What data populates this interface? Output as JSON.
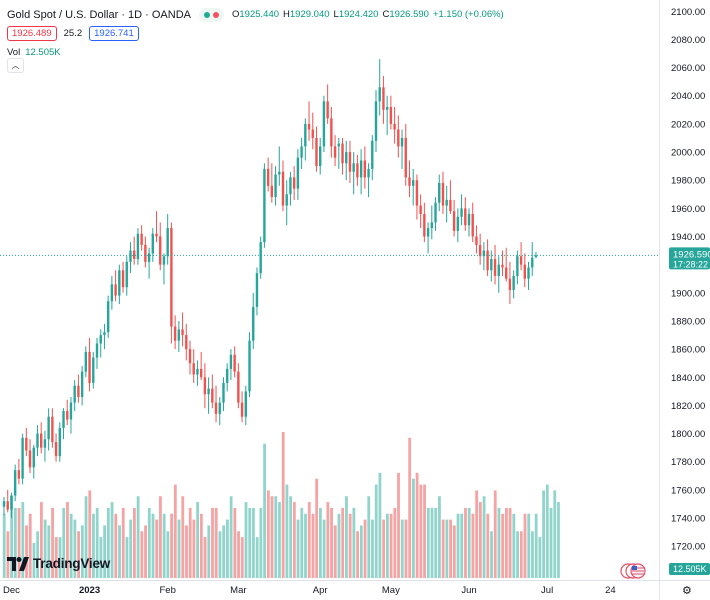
{
  "legend": {
    "symbol": "Gold Spot / U.S. Dollar · 1D · OANDA",
    "open_key": "O",
    "open": "1925.440",
    "high_key": "H",
    "high": "1929.040",
    "low_key": "L",
    "low": "1924.420",
    "close_key": "C",
    "close": "1926.590",
    "change": "+1.150 (+0.06%)",
    "sell_price": "1926.489",
    "spread": "25.2",
    "buy_price": "1926.741",
    "vol_key": "Vol",
    "vol_value": "12.505K"
  },
  "price_axis": {
    "current_price": "1926.590",
    "countdown": "17:28:22",
    "volume_tag": "12.505K"
  },
  "branding": {
    "logo_text": "TradingView"
  },
  "colors": {
    "up": "#26a69a",
    "down": "#ef5350",
    "up_volume": "#91d4cc",
    "down_volume": "#f5a3a3",
    "price_line": "#26a69a"
  },
  "chart_data": {
    "type": "candlestick",
    "title": "Gold Spot / U.S. Dollar · 1D · OANDA",
    "ylim": [
      1696,
      2108
    ],
    "y_ticks": [
      1720,
      1740,
      1760,
      1780,
      1800,
      1820,
      1840,
      1860,
      1880,
      1900,
      1920,
      1940,
      1960,
      1980,
      2000,
      2020,
      2040,
      2060,
      2080,
      2100
    ],
    "x_ticks": [
      {
        "label": "Dec",
        "index": 2
      },
      {
        "label": "2023",
        "index": 23
      },
      {
        "label": "Feb",
        "index": 44
      },
      {
        "label": "Mar",
        "index": 63
      },
      {
        "label": "Apr",
        "index": 85
      },
      {
        "label": "May",
        "index": 104
      },
      {
        "label": "Jun",
        "index": 125
      },
      {
        "label": "Jul",
        "index": 146
      },
      {
        "label": "24",
        "index": 163
      }
    ],
    "candles": [
      [
        1748,
        1755,
        1742,
        1752
      ],
      [
        1752,
        1760,
        1744,
        1746
      ],
      [
        1746,
        1758,
        1740,
        1756
      ],
      [
        1756,
        1778,
        1752,
        1774
      ],
      [
        1774,
        1782,
        1764,
        1768
      ],
      [
        1768,
        1800,
        1764,
        1797
      ],
      [
        1797,
        1804,
        1784,
        1788
      ],
      [
        1788,
        1796,
        1772,
        1776
      ],
      [
        1776,
        1792,
        1768,
        1790
      ],
      [
        1790,
        1806,
        1784,
        1800
      ],
      [
        1800,
        1808,
        1786,
        1790
      ],
      [
        1790,
        1802,
        1780,
        1796
      ],
      [
        1796,
        1818,
        1788,
        1812
      ],
      [
        1812,
        1818,
        1790,
        1794
      ],
      [
        1794,
        1800,
        1780,
        1784
      ],
      [
        1784,
        1808,
        1780,
        1804
      ],
      [
        1804,
        1818,
        1796,
        1816
      ],
      [
        1816,
        1824,
        1806,
        1810
      ],
      [
        1810,
        1826,
        1800,
        1822
      ],
      [
        1822,
        1838,
        1816,
        1834
      ],
      [
        1834,
        1842,
        1822,
        1826
      ],
      [
        1826,
        1848,
        1820,
        1844
      ],
      [
        1844,
        1862,
        1840,
        1858
      ],
      [
        1858,
        1868,
        1830,
        1836
      ],
      [
        1836,
        1858,
        1832,
        1854
      ],
      [
        1854,
        1868,
        1846,
        1864
      ],
      [
        1864,
        1874,
        1854,
        1870
      ],
      [
        1870,
        1878,
        1860,
        1872
      ],
      [
        1872,
        1898,
        1868,
        1894
      ],
      [
        1894,
        1912,
        1888,
        1906
      ],
      [
        1906,
        1916,
        1894,
        1898
      ],
      [
        1898,
        1920,
        1892,
        1916
      ],
      [
        1916,
        1922,
        1900,
        1904
      ],
      [
        1904,
        1926,
        1898,
        1922
      ],
      [
        1922,
        1936,
        1914,
        1930
      ],
      [
        1930,
        1940,
        1920,
        1924
      ],
      [
        1924,
        1946,
        1920,
        1942
      ],
      [
        1942,
        1948,
        1930,
        1934
      ],
      [
        1934,
        1940,
        1918,
        1922
      ],
      [
        1922,
        1932,
        1910,
        1928
      ],
      [
        1928,
        1946,
        1922,
        1942
      ],
      [
        1942,
        1958,
        1936,
        1940
      ],
      [
        1940,
        1950,
        1916,
        1920
      ],
      [
        1920,
        1928,
        1906,
        1926
      ],
      [
        1926,
        1956,
        1920,
        1946
      ],
      [
        1946,
        1950,
        1864,
        1876
      ],
      [
        1876,
        1884,
        1860,
        1866
      ],
      [
        1866,
        1880,
        1858,
        1874
      ],
      [
        1874,
        1886,
        1862,
        1870
      ],
      [
        1870,
        1878,
        1852,
        1860
      ],
      [
        1860,
        1866,
        1842,
        1850
      ],
      [
        1850,
        1860,
        1836,
        1842
      ],
      [
        1842,
        1852,
        1834,
        1846
      ],
      [
        1846,
        1858,
        1838,
        1840
      ],
      [
        1840,
        1850,
        1818,
        1828
      ],
      [
        1828,
        1840,
        1814,
        1832
      ],
      [
        1832,
        1842,
        1818,
        1822
      ],
      [
        1822,
        1834,
        1808,
        1814
      ],
      [
        1814,
        1826,
        1806,
        1822
      ],
      [
        1822,
        1840,
        1816,
        1836
      ],
      [
        1836,
        1850,
        1830,
        1846
      ],
      [
        1846,
        1860,
        1838,
        1856
      ],
      [
        1856,
        1862,
        1840,
        1844
      ],
      [
        1844,
        1850,
        1818,
        1822
      ],
      [
        1822,
        1830,
        1808,
        1812
      ],
      [
        1812,
        1834,
        1806,
        1830
      ],
      [
        1830,
        1872,
        1826,
        1866
      ],
      [
        1866,
        1900,
        1860,
        1890
      ],
      [
        1890,
        1918,
        1884,
        1914
      ],
      [
        1914,
        1940,
        1910,
        1936
      ],
      [
        1936,
        1992,
        1932,
        1988
      ],
      [
        1988,
        1996,
        1972,
        1976
      ],
      [
        1976,
        1992,
        1964,
        1968
      ],
      [
        1968,
        1990,
        1962,
        1984
      ],
      [
        1984,
        2004,
        1976,
        1986
      ],
      [
        1986,
        1994,
        1958,
        1962
      ],
      [
        1962,
        1980,
        1948,
        1970
      ],
      [
        1970,
        1986,
        1962,
        1982
      ],
      [
        1982,
        1990,
        1966,
        1974
      ],
      [
        1974,
        2002,
        1966,
        1996
      ],
      [
        1996,
        2010,
        1988,
        2004
      ],
      [
        2004,
        2024,
        1994,
        2020
      ],
      [
        2020,
        2036,
        2008,
        2016
      ],
      [
        2016,
        2028,
        2002,
        2010
      ],
      [
        2010,
        2018,
        1986,
        1990
      ],
      [
        1990,
        2010,
        1984,
        2004
      ],
      [
        2004,
        2040,
        2000,
        2036
      ],
      [
        2036,
        2048,
        2020,
        2024
      ],
      [
        2024,
        2032,
        1996,
        2004
      ],
      [
        2004,
        2012,
        1990,
        1996
      ],
      [
        2004,
        2010,
        1988,
        2006
      ],
      [
        2006,
        2010,
        1984,
        1992
      ],
      [
        1992,
        2008,
        1980,
        2000
      ],
      [
        2000,
        2008,
        1978,
        1986
      ],
      [
        1986,
        2000,
        1970,
        1992
      ],
      [
        1992,
        1998,
        1976,
        1982
      ],
      [
        1982,
        2002,
        1970,
        1994
      ],
      [
        1994,
        2004,
        1974,
        1982
      ],
      [
        1982,
        1992,
        1968,
        1988
      ],
      [
        1988,
        2012,
        1980,
        2008
      ],
      [
        2008,
        2044,
        2000,
        2036
      ],
      [
        2036,
        2066,
        2026,
        2046
      ],
      [
        2046,
        2054,
        2020,
        2030
      ],
      [
        2030,
        2040,
        2012,
        2032
      ],
      [
        2032,
        2040,
        2016,
        2020
      ],
      [
        2020,
        2032,
        2006,
        2016
      ],
      [
        2016,
        2026,
        1996,
        2004
      ],
      [
        2004,
        2016,
        1988,
        2010
      ],
      [
        2010,
        2020,
        1976,
        1982
      ],
      [
        1982,
        1994,
        1968,
        1976
      ],
      [
        1976,
        1988,
        1962,
        1980
      ],
      [
        1980,
        1984,
        1952,
        1962
      ],
      [
        1962,
        1970,
        1946,
        1956
      ],
      [
        1956,
        1964,
        1936,
        1940
      ],
      [
        1940,
        1950,
        1928,
        1946
      ],
      [
        1946,
        1962,
        1938,
        1950
      ],
      [
        1950,
        1968,
        1944,
        1964
      ],
      [
        1964,
        1984,
        1958,
        1978
      ],
      [
        1978,
        1986,
        1956,
        1962
      ],
      [
        1962,
        1976,
        1950,
        1966
      ],
      [
        1966,
        1980,
        1956,
        1958
      ],
      [
        1958,
        1966,
        1940,
        1944
      ],
      [
        1944,
        1960,
        1936,
        1954
      ],
      [
        1954,
        1970,
        1948,
        1960
      ],
      [
        1960,
        1968,
        1944,
        1948
      ],
      [
        1948,
        1960,
        1940,
        1956
      ],
      [
        1956,
        1964,
        1936,
        1940
      ],
      [
        1940,
        1948,
        1928,
        1934
      ],
      [
        1934,
        1942,
        1920,
        1926
      ],
      [
        1926,
        1936,
        1916,
        1930
      ],
      [
        1930,
        1938,
        1912,
        1916
      ],
      [
        1916,
        1930,
        1908,
        1924
      ],
      [
        1924,
        1934,
        1906,
        1912
      ],
      [
        1912,
        1926,
        1900,
        1920
      ],
      [
        1920,
        1930,
        1912,
        1918
      ],
      [
        1918,
        1932,
        1908,
        1910
      ],
      [
        1910,
        1922,
        1892,
        1902
      ],
      [
        1902,
        1916,
        1896,
        1912
      ],
      [
        1912,
        1930,
        1906,
        1926
      ],
      [
        1926,
        1936,
        1916,
        1920
      ],
      [
        1920,
        1928,
        1904,
        1910
      ],
      [
        1910,
        1922,
        1902,
        1918
      ],
      [
        1918,
        1936,
        1912,
        1925
      ],
      [
        1925.44,
        1929.04,
        1924.42,
        1926.59
      ]
    ],
    "volumes": [
      22,
      16,
      28,
      24,
      24,
      26,
      18,
      22,
      12,
      16,
      26,
      20,
      18,
      24,
      14,
      14,
      24,
      26,
      22,
      20,
      16,
      18,
      28,
      30,
      22,
      24,
      14,
      18,
      24,
      26,
      22,
      18,
      24,
      14,
      20,
      24,
      28,
      16,
      18,
      24,
      22,
      20,
      28,
      22,
      16,
      22,
      32,
      20,
      28,
      18,
      24,
      20,
      26,
      22,
      14,
      18,
      24,
      24,
      16,
      18,
      20,
      28,
      24,
      16,
      14,
      26,
      24,
      24,
      14,
      24,
      46,
      30,
      28,
      28,
      26,
      50,
      32,
      28,
      26,
      20,
      24,
      22,
      26,
      22,
      34,
      24,
      20,
      26,
      24,
      18,
      22,
      24,
      28,
      22,
      24,
      16,
      18,
      20,
      28,
      20,
      32,
      36,
      20,
      22,
      22,
      24,
      36,
      20,
      20,
      48,
      34,
      36,
      32,
      32,
      24,
      24,
      24,
      28,
      20,
      20,
      20,
      18,
      22,
      22,
      24,
      24,
      22,
      30,
      26,
      28,
      22,
      16,
      30,
      24,
      22,
      24,
      24,
      22,
      16,
      16,
      22,
      22,
      16,
      22,
      14,
      30,
      32,
      24,
      30,
      26
    ]
  }
}
